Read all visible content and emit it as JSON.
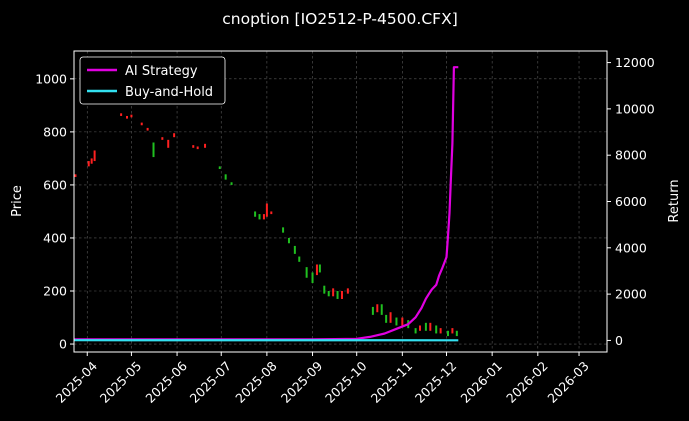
{
  "chart_data": {
    "type": "line",
    "title": "cnoption [IO2512-P-4500.CFX]",
    "ylabel": "Price",
    "y2label": "Return",
    "x_range": [
      "2025-03-23",
      "2026-03-20"
    ],
    "ylim": [
      -30,
      1105
    ],
    "y2lim": [
      -500,
      12500
    ],
    "grid": true,
    "legend_position": "top-left",
    "x_ticks": [
      "2025-04",
      "2025-05",
      "2025-06",
      "2025-07",
      "2025-08",
      "2025-09",
      "2025-10",
      "2025-11",
      "2025-12",
      "2026-01",
      "2026-02",
      "2026-03"
    ],
    "y_ticks": [
      0,
      200,
      400,
      600,
      800,
      1000
    ],
    "y2_ticks": [
      0,
      2000,
      4000,
      6000,
      8000,
      10000,
      12000
    ],
    "series": [
      {
        "name": "AI Strategy",
        "axis": "right",
        "color": "#e000e0",
        "x": [
          "2025-03-23",
          "2025-05-01",
          "2025-06-01",
          "2025-07-01",
          "2025-08-01",
          "2025-09-01",
          "2025-10-01",
          "2025-10-10",
          "2025-10-20",
          "2025-10-28",
          "2025-11-05",
          "2025-11-10",
          "2025-11-14",
          "2025-11-17",
          "2025-11-19",
          "2025-11-21",
          "2025-11-24",
          "2025-11-25",
          "2025-11-26",
          "2025-11-28",
          "2025-12-01",
          "2025-12-02",
          "2025-12-03",
          "2025-12-04",
          "2025-12-05",
          "2025-12-06",
          "2025-12-07",
          "2025-12-08",
          "2025-12-09"
        ],
        "values": [
          50,
          50,
          50,
          50,
          50,
          50,
          70,
          150,
          300,
          500,
          700,
          1000,
          1400,
          1800,
          2000,
          2200,
          2400,
          2600,
          2800,
          3100,
          3600,
          4500,
          5500,
          7000,
          8500,
          11800,
          11800,
          11800,
          11800
        ]
      },
      {
        "name": "Buy-and-Hold",
        "axis": "right",
        "color": "#33e0f0",
        "x": [
          "2025-03-23",
          "2025-12-09"
        ],
        "values": [
          10,
          5
        ]
      }
    ],
    "candles": [
      {
        "date": "2025-03-24",
        "open": 630,
        "close": 640,
        "up": true
      },
      {
        "date": "2025-04-02",
        "open": 670,
        "close": 690,
        "up": true
      },
      {
        "date": "2025-04-04",
        "open": 680,
        "close": 700,
        "up": true
      },
      {
        "date": "2025-04-06",
        "open": 690,
        "close": 730,
        "up": true
      },
      {
        "date": "2025-04-24",
        "open": 860,
        "close": 870,
        "up": true
      },
      {
        "date": "2025-04-28",
        "open": 850,
        "close": 860,
        "up": true
      },
      {
        "date": "2025-05-01",
        "open": 855,
        "close": 865,
        "up": true
      },
      {
        "date": "2025-05-08",
        "open": 825,
        "close": 835,
        "up": true
      },
      {
        "date": "2025-05-12",
        "open": 805,
        "close": 815,
        "up": true
      },
      {
        "date": "2025-05-16",
        "open": 760,
        "close": 705,
        "up": false
      },
      {
        "date": "2025-05-22",
        "open": 770,
        "close": 780,
        "up": true
      },
      {
        "date": "2025-05-26",
        "open": 740,
        "close": 770,
        "up": true
      },
      {
        "date": "2025-05-30",
        "open": 780,
        "close": 795,
        "up": true
      },
      {
        "date": "2025-06-12",
        "open": 740,
        "close": 750,
        "up": true
      },
      {
        "date": "2025-06-15",
        "open": 735,
        "close": 745,
        "up": true
      },
      {
        "date": "2025-06-20",
        "open": 740,
        "close": 755,
        "up": true
      },
      {
        "date": "2025-06-30",
        "open": 670,
        "close": 660,
        "up": false
      },
      {
        "date": "2025-07-04",
        "open": 640,
        "close": 620,
        "up": false
      },
      {
        "date": "2025-07-08",
        "open": 610,
        "close": 600,
        "up": false
      },
      {
        "date": "2025-07-24",
        "open": 500,
        "close": 480,
        "up": false
      },
      {
        "date": "2025-07-27",
        "open": 490,
        "close": 470,
        "up": false
      },
      {
        "date": "2025-07-30",
        "open": 470,
        "close": 490,
        "up": true
      },
      {
        "date": "2025-08-01",
        "open": 480,
        "close": 530,
        "up": true
      },
      {
        "date": "2025-08-04",
        "open": 490,
        "close": 500,
        "up": true
      },
      {
        "date": "2025-08-12",
        "open": 440,
        "close": 420,
        "up": false
      },
      {
        "date": "2025-08-16",
        "open": 400,
        "close": 380,
        "up": false
      },
      {
        "date": "2025-08-20",
        "open": 370,
        "close": 340,
        "up": false
      },
      {
        "date": "2025-08-23",
        "open": 330,
        "close": 310,
        "up": false
      },
      {
        "date": "2025-08-28",
        "open": 290,
        "close": 250,
        "up": false
      },
      {
        "date": "2025-09-01",
        "open": 270,
        "close": 230,
        "up": false
      },
      {
        "date": "2025-09-04",
        "open": 260,
        "close": 300,
        "up": true
      },
      {
        "date": "2025-09-06",
        "open": 300,
        "close": 270,
        "up": false
      },
      {
        "date": "2025-09-09",
        "open": 220,
        "close": 190,
        "up": false
      },
      {
        "date": "2025-09-12",
        "open": 200,
        "close": 180,
        "up": false
      },
      {
        "date": "2025-09-15",
        "open": 180,
        "close": 210,
        "up": true
      },
      {
        "date": "2025-09-18",
        "open": 200,
        "close": 170,
        "up": false
      },
      {
        "date": "2025-09-21",
        "open": 170,
        "close": 200,
        "up": true
      },
      {
        "date": "2025-09-25",
        "open": 190,
        "close": 210,
        "up": true
      },
      {
        "date": "2025-10-12",
        "open": 140,
        "close": 110,
        "up": false
      },
      {
        "date": "2025-10-15",
        "open": 120,
        "close": 150,
        "up": true
      },
      {
        "date": "2025-10-18",
        "open": 150,
        "close": 110,
        "up": false
      },
      {
        "date": "2025-10-21",
        "open": 110,
        "close": 80,
        "up": false
      },
      {
        "date": "2025-10-24",
        "open": 80,
        "close": 120,
        "up": true
      },
      {
        "date": "2025-10-28",
        "open": 100,
        "close": 70,
        "up": false
      },
      {
        "date": "2025-11-01",
        "open": 70,
        "close": 100,
        "up": true
      },
      {
        "date": "2025-11-05",
        "open": 90,
        "close": 60,
        "up": false
      },
      {
        "date": "2025-11-10",
        "open": 60,
        "close": 40,
        "up": false
      },
      {
        "date": "2025-11-13",
        "open": 50,
        "close": 70,
        "up": true
      },
      {
        "date": "2025-11-17",
        "open": 80,
        "close": 50,
        "up": false
      },
      {
        "date": "2025-11-20",
        "open": 50,
        "close": 80,
        "up": true
      },
      {
        "date": "2025-11-24",
        "open": 70,
        "close": 40,
        "up": false
      },
      {
        "date": "2025-11-27",
        "open": 40,
        "close": 60,
        "up": true
      },
      {
        "date": "2025-12-02",
        "open": 50,
        "close": 30,
        "up": false
      },
      {
        "date": "2025-12-05",
        "open": 40,
        "close": 60,
        "up": true
      },
      {
        "date": "2025-12-08",
        "open": 50,
        "close": 30,
        "up": false
      }
    ],
    "colors": {
      "up": "#ff2020",
      "down": "#20c020",
      "grid": "#5a5a5a",
      "frame": "#ffffff"
    }
  }
}
